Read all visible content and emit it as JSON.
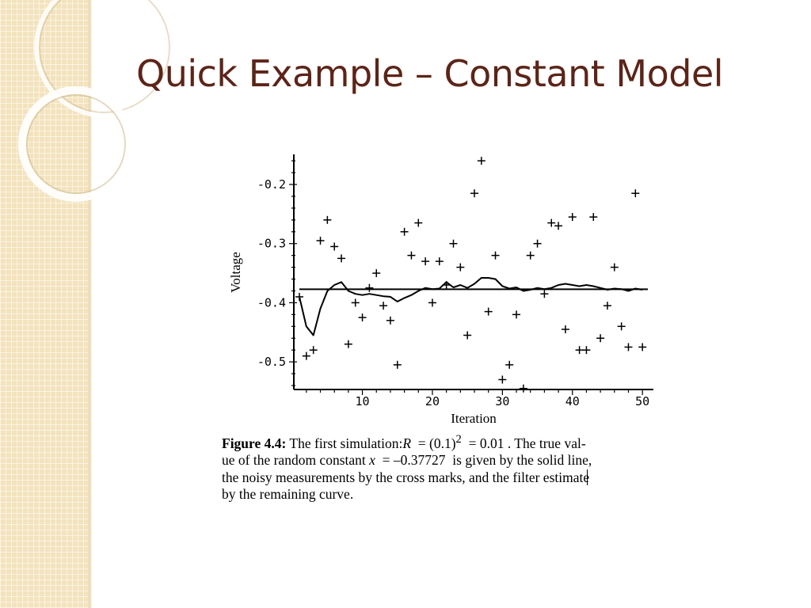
{
  "slide": {
    "title": "Quick Example – Constant Model"
  },
  "caption": {
    "label": "Figure 4.4:",
    "part1": "The first simulation:",
    "r_symbol": "R",
    "r_equation": "= (0.1)",
    "r_exponent": "2",
    "r_result": "= 0.01",
    "part2": ". The true val-",
    "part3": "ue of the random constant",
    "x_symbol": "x",
    "x_value": "= –0.37727",
    "part4": "is given by the solid line,",
    "part5": "the noisy measurements by the cross marks, and the filter estimate",
    "part6": "by the remaining curve."
  },
  "chart_data": {
    "type": "scatter",
    "xlabel": "Iteration",
    "ylabel": "Voltage",
    "xlim": [
      1,
      50
    ],
    "ylim": [
      -0.55,
      -0.15
    ],
    "x_ticks": [
      10,
      20,
      30,
      40,
      50
    ],
    "y_ticks": [
      -0.5,
      -0.4,
      -0.3,
      -0.2
    ],
    "y_tick_labels": [
      "-0.5",
      "-0.4",
      "-0.3",
      "-0.2"
    ],
    "true_value": -0.37727,
    "series": [
      {
        "style": "cross-marks",
        "x": [
          1,
          2,
          3,
          4,
          5,
          6,
          7,
          8,
          9,
          10,
          11,
          12,
          13,
          14,
          15,
          16,
          17,
          18,
          19,
          20,
          21,
          22,
          23,
          24,
          25,
          26,
          27,
          28,
          29,
          30,
          31,
          32,
          33,
          34,
          35,
          36,
          37,
          38,
          39,
          40,
          41,
          42,
          43,
          44,
          45,
          46,
          47,
          48,
          49,
          50
        ],
        "y": [
          -0.39,
          -0.49,
          -0.48,
          -0.295,
          -0.26,
          -0.305,
          -0.325,
          -0.47,
          -0.4,
          -0.425,
          -0.375,
          -0.35,
          -0.405,
          -0.43,
          -0.505,
          -0.28,
          -0.32,
          -0.265,
          -0.33,
          -0.4,
          -0.33,
          -0.37,
          -0.3,
          -0.34,
          -0.455,
          -0.215,
          -0.16,
          -0.415,
          -0.32,
          -0.53,
          -0.505,
          -0.42,
          -0.545,
          -0.32,
          -0.3,
          -0.385,
          -0.265,
          -0.27,
          -0.445,
          -0.255,
          -0.48,
          -0.48,
          -0.255,
          -0.46,
          -0.405,
          -0.34,
          -0.44,
          -0.475,
          -0.215,
          -0.475
        ]
      },
      {
        "style": "solid-curve",
        "x": [
          1,
          2,
          3,
          4,
          5,
          6,
          7,
          8,
          9,
          10,
          11,
          12,
          13,
          14,
          15,
          16,
          17,
          18,
          19,
          20,
          21,
          22,
          23,
          24,
          25,
          26,
          27,
          28,
          29,
          30,
          31,
          32,
          33,
          34,
          35,
          36,
          37,
          38,
          39,
          40,
          41,
          42,
          43,
          44,
          45,
          46,
          47,
          48,
          49,
          50
        ],
        "y": [
          -0.39,
          -0.44,
          -0.455,
          -0.41,
          -0.38,
          -0.37,
          -0.365,
          -0.38,
          -0.385,
          -0.387,
          -0.385,
          -0.387,
          -0.389,
          -0.39,
          -0.398,
          -0.392,
          -0.387,
          -0.38,
          -0.375,
          -0.377,
          -0.376,
          -0.365,
          -0.374,
          -0.37,
          -0.375,
          -0.368,
          -0.358,
          -0.358,
          -0.36,
          -0.372,
          -0.376,
          -0.374,
          -0.38,
          -0.378,
          -0.375,
          -0.377,
          -0.375,
          -0.37,
          -0.368,
          -0.37,
          -0.372,
          -0.37,
          -0.372,
          -0.375,
          -0.378,
          -0.376,
          -0.377,
          -0.38,
          -0.376,
          -0.378
        ]
      }
    ]
  }
}
